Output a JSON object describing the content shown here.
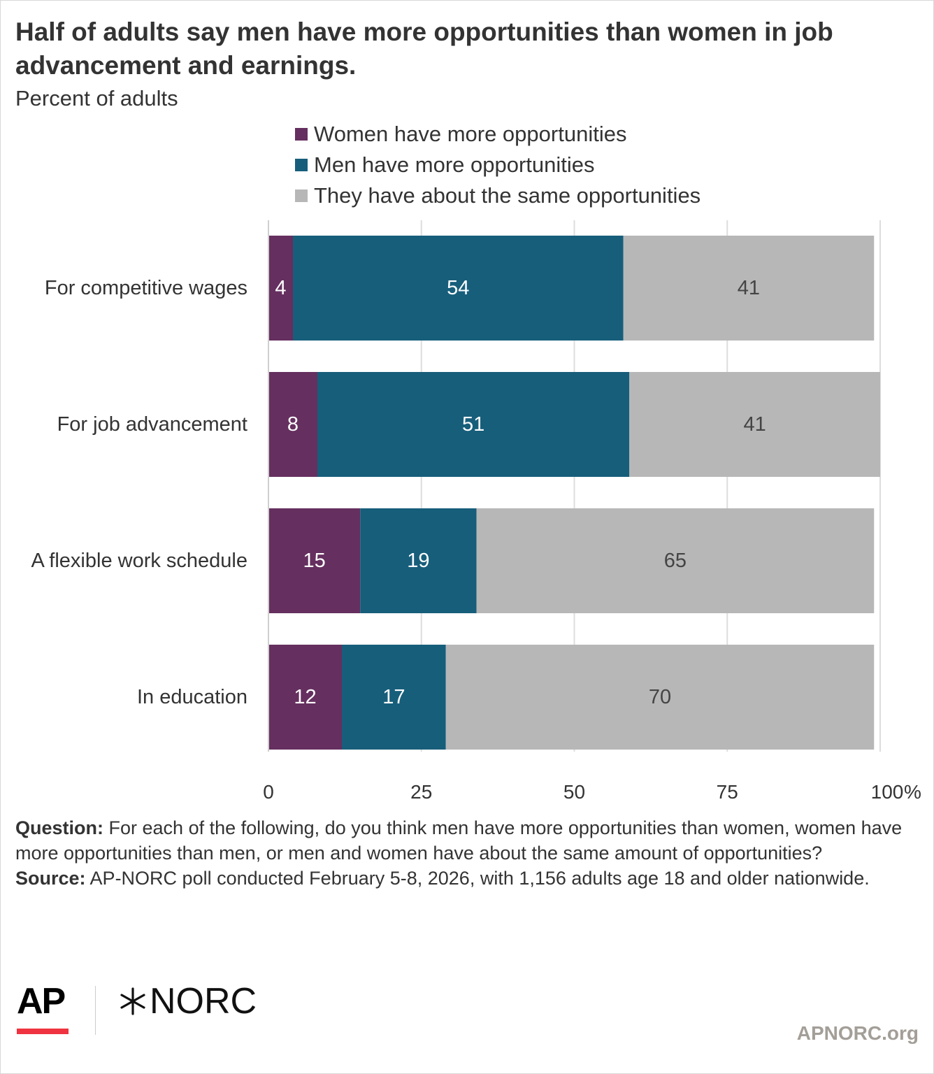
{
  "title": "Half of adults say men have more opportunities than women in job advancement and earnings.",
  "subtitle": "Percent of adults",
  "colors": {
    "women": "#652f5f",
    "men": "#175e7b",
    "same": "#b7b7b7",
    "grid": "#dddddd",
    "text": "#333333",
    "label_light": "#ffffff",
    "label_dark": "#444444"
  },
  "chart_data": {
    "type": "bar",
    "orientation": "horizontal",
    "stacked": true,
    "categories": [
      "For competitive wages",
      "For job advancement",
      "A flexible work schedule",
      "In education"
    ],
    "series": [
      {
        "name": "Women have more opportunities",
        "color_key": "women",
        "values": [
          4,
          8,
          15,
          12
        ]
      },
      {
        "name": "Men have more opportunities",
        "color_key": "men",
        "values": [
          54,
          51,
          19,
          17
        ]
      },
      {
        "name": "They have about the same opportunities",
        "color_key": "same",
        "values": [
          41,
          41,
          65,
          70
        ]
      }
    ],
    "xlim": [
      0,
      100
    ],
    "x_ticks": [
      "0",
      "25",
      "50",
      "75",
      "100"
    ],
    "x_unit": "%",
    "grid": true,
    "legend_position": "top"
  },
  "footer": {
    "question_label": "Question:",
    "question_text": "For each of the following, do you think men have more opportunities than women, women have more opportunities than men, or men and women have about the same amount of opportunities?",
    "source_label": "Source:",
    "source_text": "AP-NORC poll conducted February 5-8, 2026, with 1,156 adults age 18 and older nationwide."
  },
  "logos": {
    "ap": "AP",
    "norc": "NORC"
  },
  "site": "APNORC.org"
}
